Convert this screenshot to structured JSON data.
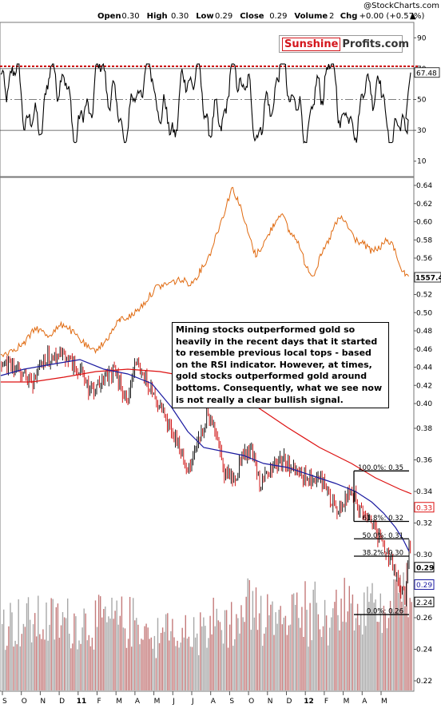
{
  "header": {
    "watermark": "@StockCharts.com",
    "ohlc": [
      {
        "label": "Open",
        "value": "0.30"
      },
      {
        "label": "High",
        "value": "0.30"
      },
      {
        "label": "Low",
        "value": "0.29"
      },
      {
        "label": "Close",
        "value": "0.29"
      },
      {
        "label": "Volume",
        "value": "2"
      },
      {
        "label": "Chg",
        "value": "+0.00 (+0.57%)"
      }
    ],
    "chg_arrow": "▲"
  },
  "logo": {
    "part1": "Sunshine",
    "part2": "Profits.com"
  },
  "annotation": "Mining stocks outperformed gold so heavily in the recent days that it started to resemble previous local tops - based on the RSI indicator. However, at times, gold stocks outperformed gold around bottoms. Consequently, what we see now is not really a clear bullish signal.",
  "colors": {
    "rsi_line": "#000000",
    "rsi_overbought_dotted": "#cc0000",
    "gold_ratio_line": "#e06a10",
    "ma_short": "#1a1aa0",
    "ma_long": "#dd1111",
    "candle_up": "#000000",
    "candle_down": "#cc0000",
    "volume_bar": "#c9a0a0"
  },
  "chart_data": [
    {
      "type": "line",
      "name": "RSI panel",
      "yticks": [
        10,
        30,
        50,
        70,
        90
      ],
      "ylim": [
        0,
        100
      ],
      "reference_lines": [
        30,
        50,
        70
      ],
      "current_value_label": "67.48",
      "current_value": 67.48
    },
    {
      "type": "line",
      "name": "Gold overlay panel",
      "yticks": [
        0.4,
        0.42,
        0.44,
        0.46,
        0.48,
        0.5,
        0.52,
        0.54,
        0.56,
        0.58,
        0.6,
        0.62,
        0.64
      ],
      "ytick_labels": [
        "0.40",
        "0.42",
        "0.44",
        "0.46",
        "0.48",
        "0.50",
        "0.52",
        "0.54",
        "0.56",
        "0.58",
        "0.60",
        "0.62",
        "0.64"
      ],
      "current_value_label": "1557.4"
    },
    {
      "type": "line",
      "name": "Price panel",
      "yticks": [
        0.22,
        0.24,
        0.26,
        0.28,
        0.3,
        0.32,
        0.34,
        0.36,
        0.38
      ],
      "ytick_labels": [
        "0.22",
        "0.24",
        "0.26",
        "0.28",
        "0.30",
        "0.32",
        "0.34",
        "0.36",
        "0.38"
      ],
      "ylim": [
        0.21,
        0.46
      ],
      "badges": [
        {
          "label": "0.33",
          "value": 0.33,
          "color": "#dd1111"
        },
        {
          "label": "0.29",
          "value": 0.292,
          "color": "#000000"
        },
        {
          "label": "0.29",
          "value": 0.281,
          "color": "#1a1aa0"
        },
        {
          "label": "2.24",
          "value": 0.27,
          "color": "#000000"
        }
      ],
      "fibonacci": [
        {
          "label": "100.0%: 0.35",
          "value": 0.353
        },
        {
          "label": "61.8%: 0.32",
          "value": 0.321
        },
        {
          "label": "50.0%: 0.31",
          "value": 0.31
        },
        {
          "label": "38.2%: 0.30",
          "value": 0.299
        },
        {
          "label": "0.0%: 0.26",
          "value": 0.262
        }
      ]
    }
  ],
  "x_axis": {
    "labels": [
      {
        "text": "S",
        "bold": false
      },
      {
        "text": "O",
        "bold": false
      },
      {
        "text": "N",
        "bold": false
      },
      {
        "text": "D",
        "bold": false
      },
      {
        "text": "11",
        "bold": true
      },
      {
        "text": "F",
        "bold": false
      },
      {
        "text": "M",
        "bold": false
      },
      {
        "text": "A",
        "bold": false
      },
      {
        "text": "M",
        "bold": false
      },
      {
        "text": "J",
        "bold": false
      },
      {
        "text": "J",
        "bold": false
      },
      {
        "text": "A",
        "bold": false
      },
      {
        "text": "S",
        "bold": false
      },
      {
        "text": "O",
        "bold": false
      },
      {
        "text": "N",
        "bold": false
      },
      {
        "text": "D",
        "bold": false
      },
      {
        "text": "12",
        "bold": true
      },
      {
        "text": "F",
        "bold": false
      },
      {
        "text": "M",
        "bold": false
      },
      {
        "text": "A",
        "bold": false
      },
      {
        "text": "M",
        "bold": false
      }
    ]
  }
}
